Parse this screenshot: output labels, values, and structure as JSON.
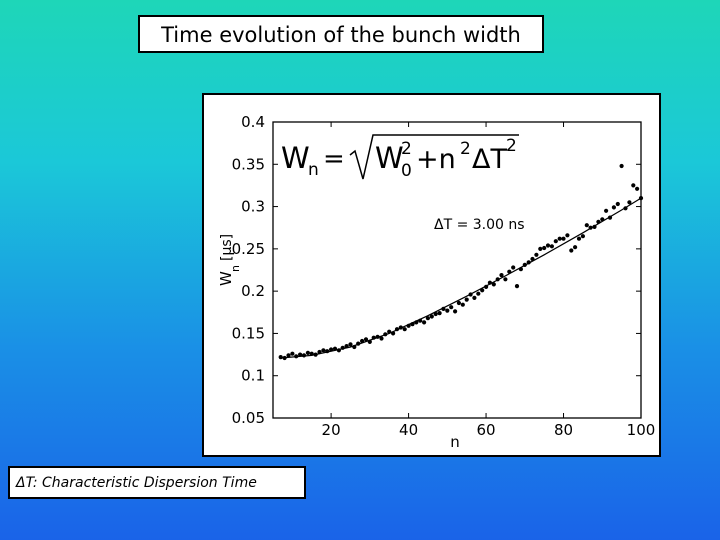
{
  "slide": {
    "title": "Time evolution of  the bunch width",
    "note": "ΔT: Characteristic Dispersion Time"
  },
  "colors": {
    "background_top": "#1ed6b8",
    "background_bottom": "#1a63e8",
    "box_fill": "#ffffff",
    "ink": "#000000"
  },
  "chart_data": {
    "type": "scatter",
    "xlabel": "n",
    "ylabel": "W",
    "ylabel_sub": "n",
    "ylabel_unit": "[μs]",
    "xlim": [
      5,
      100
    ],
    "ylim": [
      0.05,
      0.4
    ],
    "xticks": [
      "20",
      "40",
      "60",
      "80",
      "100"
    ],
    "yticks": [
      "0.4",
      "0.35",
      "0.3",
      "0.25",
      "0.2",
      "0.15",
      "0.1",
      "0.05"
    ],
    "grid": false,
    "formula": {
      "lhs": "W",
      "lhs_sub": "n",
      "rhs": [
        "W",
        "0",
        "2",
        "+n",
        "2",
        "ΔT",
        "2"
      ]
    },
    "annotation": "ΔT = 3.00 ns",
    "fit": {
      "name": "fit",
      "x": [
        7,
        15,
        25,
        35,
        45,
        55,
        65,
        75,
        85,
        95,
        100
      ],
      "y": [
        0.121,
        0.124,
        0.134,
        0.15,
        0.171,
        0.194,
        0.218,
        0.243,
        0.269,
        0.296,
        0.31
      ]
    },
    "points": {
      "x": [
        7,
        8,
        9,
        10,
        11,
        12,
        13,
        14,
        15,
        16,
        17,
        18,
        19,
        20,
        21,
        22,
        23,
        24,
        25,
        26,
        27,
        28,
        29,
        30,
        31,
        32,
        33,
        34,
        35,
        36,
        37,
        38,
        39,
        40,
        41,
        42,
        43,
        44,
        45,
        46,
        47,
        48,
        49,
        50,
        51,
        52,
        53,
        54,
        55,
        56,
        57,
        58,
        59,
        60,
        61,
        62,
        63,
        64,
        65,
        66,
        67,
        68,
        69,
        70,
        71,
        72,
        73,
        74,
        75,
        76,
        77,
        78,
        79,
        80,
        81,
        82,
        83,
        84,
        85,
        86,
        87,
        88,
        89,
        90,
        91,
        92,
        93,
        94,
        95,
        96,
        97,
        98,
        99,
        100
      ],
      "y": [
        0.122,
        0.121,
        0.124,
        0.126,
        0.123,
        0.125,
        0.124,
        0.127,
        0.126,
        0.125,
        0.128,
        0.13,
        0.129,
        0.131,
        0.132,
        0.13,
        0.133,
        0.135,
        0.137,
        0.134,
        0.138,
        0.141,
        0.143,
        0.14,
        0.145,
        0.146,
        0.144,
        0.149,
        0.152,
        0.15,
        0.155,
        0.157,
        0.155,
        0.159,
        0.161,
        0.163,
        0.165,
        0.163,
        0.168,
        0.17,
        0.173,
        0.174,
        0.179,
        0.177,
        0.181,
        0.176,
        0.186,
        0.184,
        0.19,
        0.196,
        0.192,
        0.197,
        0.201,
        0.205,
        0.21,
        0.208,
        0.214,
        0.219,
        0.214,
        0.223,
        0.228,
        0.206,
        0.226,
        0.231,
        0.234,
        0.238,
        0.243,
        0.25,
        0.251,
        0.254,
        0.253,
        0.259,
        0.262,
        0.262,
        0.266,
        0.248,
        0.252,
        0.262,
        0.265,
        0.278,
        0.275,
        0.276,
        0.282,
        0.285,
        0.295,
        0.287,
        0.299,
        0.303,
        0.348,
        0.298,
        0.305,
        0.325,
        0.321,
        0.31
      ]
    }
  }
}
